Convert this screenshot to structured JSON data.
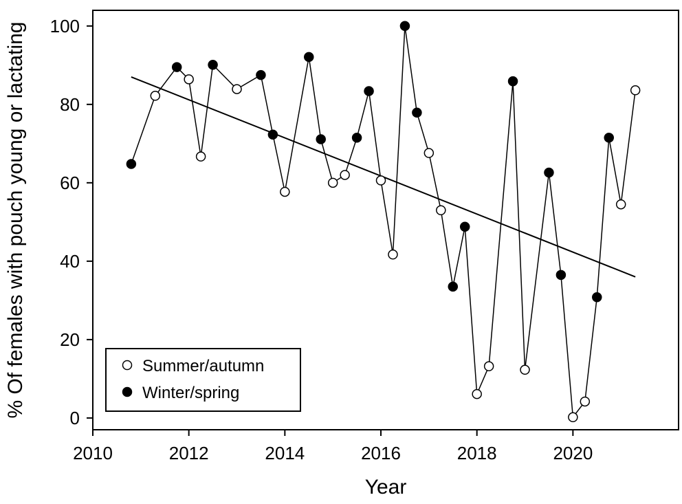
{
  "chart_data": {
    "type": "scatter",
    "xlabel": "Year",
    "ylabel": "% Of females with pouch young or lactating",
    "xlim": [
      2010,
      2022.2
    ],
    "ylim": [
      -3,
      104
    ],
    "xticks": [
      2010,
      2012,
      2014,
      2016,
      2018,
      2020
    ],
    "yticks": [
      0,
      20,
      40,
      60,
      80,
      100
    ],
    "grid": false,
    "legend_position": "bottom-left",
    "colors": {
      "line": "#000000",
      "summer_fill": "#ffffff",
      "winter_fill": "#000000"
    },
    "series": [
      {
        "name": "Summer/autumn",
        "marker": "open-circle",
        "points": [
          {
            "x": 2011.3,
            "y": 82.2
          },
          {
            "x": 2012.0,
            "y": 86.4
          },
          {
            "x": 2012.25,
            "y": 66.7
          },
          {
            "x": 2013.0,
            "y": 83.9
          },
          {
            "x": 2014.0,
            "y": 57.7
          },
          {
            "x": 2015.0,
            "y": 60.0
          },
          {
            "x": 2015.25,
            "y": 62.0
          },
          {
            "x": 2016.0,
            "y": 60.6
          },
          {
            "x": 2016.25,
            "y": 41.7
          },
          {
            "x": 2017.0,
            "y": 67.6
          },
          {
            "x": 2017.25,
            "y": 53.0
          },
          {
            "x": 2018.0,
            "y": 6.1
          },
          {
            "x": 2018.25,
            "y": 13.2
          },
          {
            "x": 2019.0,
            "y": 12.3
          },
          {
            "x": 2020.0,
            "y": 0.2
          },
          {
            "x": 2020.25,
            "y": 4.2
          },
          {
            "x": 2021.0,
            "y": 54.5
          },
          {
            "x": 2021.3,
            "y": 83.6
          }
        ]
      },
      {
        "name": "Winter/spring",
        "marker": "filled-circle",
        "points": [
          {
            "x": 2010.8,
            "y": 64.8
          },
          {
            "x": 2011.75,
            "y": 89.5
          },
          {
            "x": 2012.5,
            "y": 90.1
          },
          {
            "x": 2013.5,
            "y": 87.5
          },
          {
            "x": 2013.75,
            "y": 72.3
          },
          {
            "x": 2014.5,
            "y": 92.1
          },
          {
            "x": 2014.75,
            "y": 71.1
          },
          {
            "x": 2015.5,
            "y": 71.5
          },
          {
            "x": 2015.75,
            "y": 83.4
          },
          {
            "x": 2016.5,
            "y": 100.0
          },
          {
            "x": 2016.75,
            "y": 77.9
          },
          {
            "x": 2017.5,
            "y": 33.5
          },
          {
            "x": 2017.75,
            "y": 48.8
          },
          {
            "x": 2018.75,
            "y": 85.9
          },
          {
            "x": 2019.5,
            "y": 62.6
          },
          {
            "x": 2019.75,
            "y": 36.5
          },
          {
            "x": 2020.5,
            "y": 30.8
          },
          {
            "x": 2020.75,
            "y": 71.5
          }
        ]
      }
    ],
    "trendline": {
      "x": [
        2010.8,
        2021.3
      ],
      "y": [
        87.0,
        36.0
      ]
    }
  }
}
